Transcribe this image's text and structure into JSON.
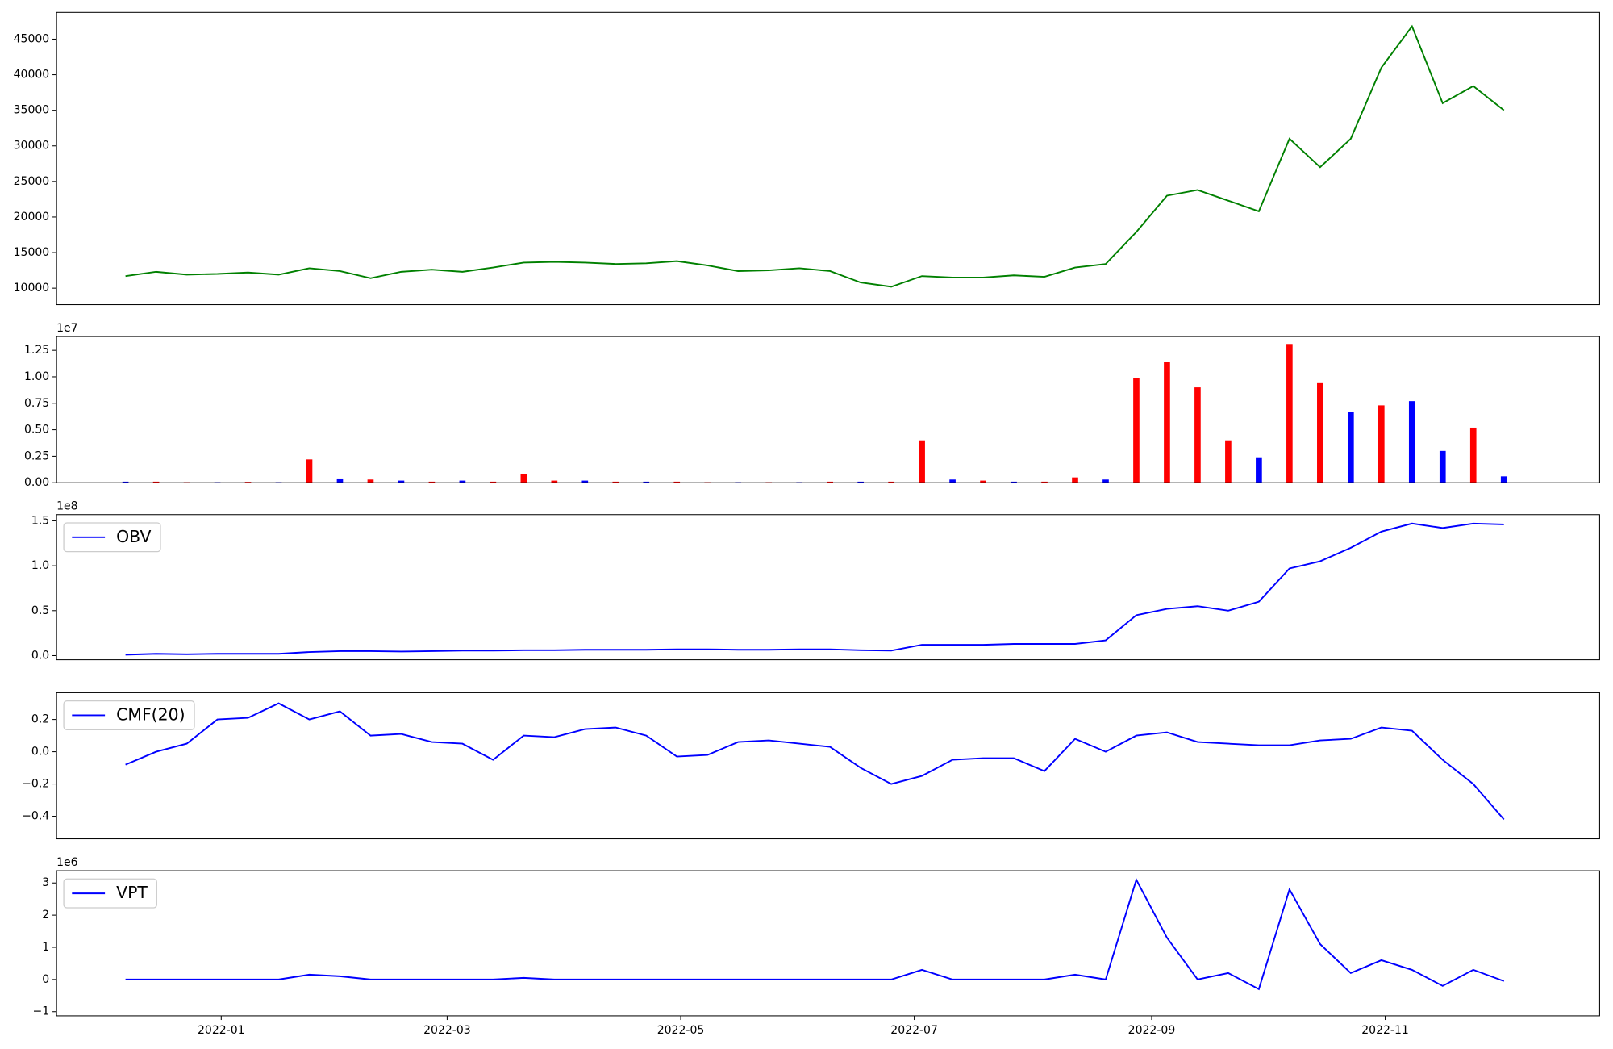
{
  "chart_data": [
    {
      "type": "line",
      "color": "#008000",
      "x": [
        18968,
        18976,
        18984,
        18992,
        19000,
        19008,
        19016,
        19024,
        19032,
        19040,
        19048,
        19056,
        19064,
        19072,
        19080,
        19088,
        19096,
        19104,
        19112,
        19120,
        19128,
        19136,
        19144,
        19152,
        19160,
        19168,
        19176,
        19184,
        19192,
        19200,
        19208,
        19216,
        19224,
        19232,
        19240,
        19248,
        19256,
        19264,
        19272,
        19280,
        19288,
        19296,
        19304,
        19312,
        19320,
        19328
      ],
      "values": [
        11700,
        12300,
        11900,
        12000,
        12200,
        11900,
        12800,
        12400,
        11400,
        12300,
        12600,
        12300,
        12900,
        13600,
        13700,
        13600,
        13400,
        13500,
        13800,
        13200,
        12400,
        12500,
        12800,
        12400,
        10800,
        10200,
        11700,
        11500,
        11500,
        11800,
        11600,
        12900,
        13400,
        17900,
        23000,
        23800,
        22300,
        20800,
        31000,
        27000,
        31000,
        41000,
        46800,
        36000,
        38400,
        35000
      ],
      "xlim": [
        18950,
        19353
      ],
      "ylim": [
        7686,
        48760
      ],
      "yticks": [
        10000,
        15000,
        20000,
        25000,
        30000,
        35000,
        40000,
        45000
      ]
    },
    {
      "type": "bar",
      "offset_label": "1e7",
      "x": [
        18968,
        18976,
        18984,
        18992,
        19000,
        19008,
        19016,
        19024,
        19032,
        19040,
        19048,
        19056,
        19064,
        19072,
        19080,
        19088,
        19096,
        19104,
        19112,
        19120,
        19128,
        19136,
        19144,
        19152,
        19160,
        19168,
        19176,
        19184,
        19192,
        19200,
        19208,
        19216,
        19224,
        19232,
        19240,
        19248,
        19256,
        19264,
        19272,
        19280,
        19288,
        19296,
        19304,
        19312,
        19320,
        19328
      ],
      "values": [
        0.01,
        0.01,
        0.005,
        0.005,
        0.008,
        0.005,
        0.22,
        0.04,
        0.03,
        0.02,
        0.01,
        0.02,
        0.01,
        0.08,
        0.02,
        0.02,
        0.01,
        0.01,
        0.01,
        0.005,
        0.005,
        0.005,
        0.005,
        0.01,
        0.01,
        0.01,
        0.4,
        0.03,
        0.02,
        0.01,
        0.01,
        0.05,
        0.03,
        0.99,
        1.14,
        0.9,
        0.4,
        0.24,
        1.31,
        0.94,
        0.67,
        0.73,
        0.77,
        0.3,
        0.52,
        0.06
      ],
      "colors": [
        "#0000ff",
        "#ff0000",
        "#ff0000",
        "#0000ff",
        "#ff0000",
        "#0000ff",
        "#ff0000",
        "#0000ff",
        "#ff0000",
        "#0000ff",
        "#ff0000",
        "#0000ff",
        "#ff0000",
        "#ff0000",
        "#ff0000",
        "#0000ff",
        "#ff0000",
        "#0000ff",
        "#ff0000",
        "#ff0000",
        "#0000ff",
        "#ff0000",
        "#0000ff",
        "#ff0000",
        "#0000ff",
        "#ff0000",
        "#ff0000",
        "#0000ff",
        "#ff0000",
        "#0000ff",
        "#ff0000",
        "#ff0000",
        "#0000ff",
        "#ff0000",
        "#ff0000",
        "#ff0000",
        "#ff0000",
        "#0000ff",
        "#ff0000",
        "#ff0000",
        "#0000ff",
        "#ff0000",
        "#0000ff",
        "#0000ff",
        "#ff0000",
        "#0000ff"
      ],
      "xlim": [
        18950,
        19353
      ],
      "ylim": [
        0,
        1.38
      ],
      "yticks": [
        {
          "value": 0,
          "label": "0.00"
        },
        0.25,
        {
          "value": 0.5,
          "label": "0.50"
        },
        0.75,
        {
          "value": 1,
          "label": "1.00"
        },
        1.25
      ]
    },
    {
      "type": "line",
      "offset_label": "1e8",
      "legend": "upper left",
      "x": [
        18968,
        18976,
        18984,
        18992,
        19000,
        19008,
        19016,
        19024,
        19032,
        19040,
        19048,
        19056,
        19064,
        19072,
        19080,
        19088,
        19096,
        19104,
        19112,
        19120,
        19128,
        19136,
        19144,
        19152,
        19160,
        19168,
        19176,
        19184,
        19192,
        19200,
        19208,
        19216,
        19224,
        19232,
        19240,
        19248,
        19256,
        19264,
        19272,
        19280,
        19288,
        19296,
        19304,
        19312,
        19320,
        19328
      ],
      "series": [
        {
          "name": "OBV",
          "color": "#0000ff",
          "values": [
            0.01,
            0.02,
            0.015,
            0.02,
            0.02,
            0.02,
            0.04,
            0.05,
            0.05,
            0.045,
            0.05,
            0.055,
            0.055,
            0.06,
            0.06,
            0.065,
            0.065,
            0.065,
            0.07,
            0.07,
            0.065,
            0.065,
            0.07,
            0.07,
            0.06,
            0.055,
            0.12,
            0.12,
            0.12,
            0.13,
            0.13,
            0.13,
            0.17,
            0.45,
            0.52,
            0.55,
            0.5,
            0.6,
            0.97,
            1.05,
            1.2,
            1.38,
            1.47,
            1.42,
            1.47,
            1.46
          ]
        }
      ],
      "xlim": [
        18950,
        19353
      ],
      "ylim": [
        -0.046,
        1.569
      ],
      "yticks": [
        {
          "value": 0,
          "label": "0.0"
        },
        0.5,
        {
          "value": 1,
          "label": "1.0"
        },
        1.5
      ]
    },
    {
      "type": "line",
      "legend": "upper left",
      "x": [
        18968,
        18976,
        18984,
        18992,
        19000,
        19008,
        19016,
        19024,
        19032,
        19040,
        19048,
        19056,
        19064,
        19072,
        19080,
        19088,
        19096,
        19104,
        19112,
        19120,
        19128,
        19136,
        19144,
        19152,
        19160,
        19168,
        19176,
        19184,
        19192,
        19200,
        19208,
        19216,
        19224,
        19232,
        19240,
        19248,
        19256,
        19264,
        19272,
        19280,
        19288,
        19296,
        19304,
        19312,
        19320,
        19328
      ],
      "series": [
        {
          "name": "CMF(20)",
          "color": "#0000ff",
          "values": [
            -0.08,
            0.0,
            0.05,
            0.2,
            0.21,
            0.3,
            0.2,
            0.25,
            0.1,
            0.11,
            0.06,
            0.05,
            -0.05,
            0.1,
            0.09,
            0.14,
            0.15,
            0.1,
            -0.03,
            -0.02,
            0.06,
            0.07,
            0.05,
            0.03,
            -0.1,
            -0.2,
            -0.15,
            -0.05,
            -0.04,
            -0.04,
            -0.12,
            0.08,
            0.0,
            0.1,
            0.12,
            0.06,
            0.05,
            0.04,
            0.04,
            0.07,
            0.08,
            0.15,
            0.13,
            -0.05,
            -0.2,
            -0.42
          ]
        }
      ],
      "xlim": [
        18950,
        19353
      ],
      "ylim": [
        -0.54,
        0.366
      ],
      "yticks": [
        {
          "value": -0.4,
          "label": "−0.4"
        },
        {
          "value": -0.2,
          "label": "−0.2"
        },
        {
          "value": 0,
          "label": "0.0"
        },
        0.2
      ]
    },
    {
      "type": "line",
      "offset_label": "1e6",
      "legend": "upper left",
      "x": [
        18968,
        18976,
        18984,
        18992,
        19000,
        19008,
        19016,
        19024,
        19032,
        19040,
        19048,
        19056,
        19064,
        19072,
        19080,
        19088,
        19096,
        19104,
        19112,
        19120,
        19128,
        19136,
        19144,
        19152,
        19160,
        19168,
        19176,
        19184,
        19192,
        19200,
        19208,
        19216,
        19224,
        19232,
        19240,
        19248,
        19256,
        19264,
        19272,
        19280,
        19288,
        19296,
        19304,
        19312,
        19320,
        19328
      ],
      "series": [
        {
          "name": "VPT",
          "color": "#0000ff",
          "values": [
            0.0,
            0.0,
            0.0,
            0.0,
            0.0,
            0.0,
            0.15,
            0.1,
            0.0,
            0.0,
            0.0,
            0.0,
            0.0,
            0.05,
            0.0,
            0.0,
            0.0,
            0.0,
            0.0,
            0.0,
            0.0,
            0.0,
            0.0,
            0.0,
            0.0,
            0.0,
            0.3,
            0.0,
            0.0,
            0.0,
            0.0,
            0.15,
            0.0,
            3.1,
            1.3,
            0.0,
            0.2,
            -0.3,
            2.8,
            1.1,
            0.2,
            0.6,
            0.3,
            -0.2,
            0.3,
            -0.05
          ]
        }
      ],
      "xlim": [
        18950,
        19353
      ],
      "ylim": [
        -1.13,
        3.38
      ],
      "yticks": [
        {
          "value": -1,
          "label": "−1"
        },
        0,
        1,
        2,
        3
      ],
      "xticks": [
        {
          "value": 18993,
          "label": "2022-01"
        },
        {
          "value": 19052,
          "label": "2022-03"
        },
        {
          "value": 19113,
          "label": "2022-05"
        },
        {
          "value": 19174,
          "label": "2022-07"
        },
        {
          "value": 19236,
          "label": "2022-09"
        },
        {
          "value": 19297,
          "label": "2022-11"
        }
      ]
    }
  ]
}
